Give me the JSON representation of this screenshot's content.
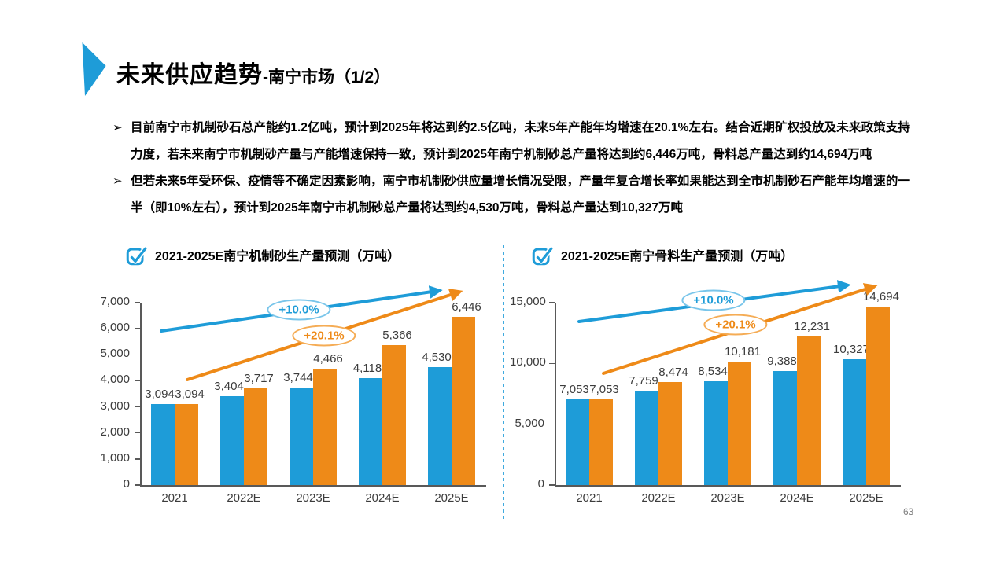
{
  "header": {
    "title_main": "未来供应趋势",
    "title_suffix": "-南宁市场（1/2）"
  },
  "bullet_marker": "➢",
  "bullets": [
    "目前南宁市机制砂石总产能约1.2亿吨，预计到2025年将达到约2.5亿吨，未来5年产能年均增速在20.1%左右。结合近期矿权投放及未来政策支持力度，若未来南宁市机制砂产量与产能增速保持一致，预计到2025年南宁机制砂总产量将达到约6,446万吨，骨料总产量达到约14,694万吨",
    "但若未来5年受环保、疫情等不确定因素影响，南宁市机制砂供应量增长情况受限，产量年复合增长率如果能达到全市机制砂石产能年均增速的一半（即10%左右），预计到2025年南宁市机制砂总产量将达到约4,530万吨，骨料总产量达到10,327万吨"
  ],
  "footer": {
    "page_number": "63"
  },
  "colors": {
    "blue": "#1E9CD8",
    "orange": "#EE8A18",
    "axis": "#595959",
    "divider": "#3FAADF"
  },
  "chart_data": [
    {
      "type": "bar",
      "title": "2021-2025E南宁机制砂生产量预测（万吨）",
      "categories": [
        "2021",
        "2022E",
        "2023E",
        "2024E",
        "2025E"
      ],
      "series": [
        {
          "name": "+10.0%",
          "color": "#1E9CD8",
          "values": [
            3094,
            3404,
            3744,
            4118,
            4530
          ]
        },
        {
          "name": "+20.1%",
          "color": "#EE8A18",
          "values": [
            3094,
            3717,
            4466,
            5366,
            6446
          ]
        }
      ],
      "annotations": [
        {
          "label": "+10.0%",
          "color": "#1E9CD8",
          "ring": "#79C5EA"
        },
        {
          "label": "+20.1%",
          "color": "#EE8A18",
          "ring": "#F5AC55"
        }
      ],
      "ylim": [
        0,
        7000
      ],
      "yticks": [
        0,
        1000,
        2000,
        3000,
        4000,
        5000,
        6000,
        7000
      ],
      "xlabel": "",
      "ylabel": "",
      "grid": false,
      "legend": "none"
    },
    {
      "type": "bar",
      "title": "2021-2025E南宁骨料生产量预测（万吨）",
      "categories": [
        "2021",
        "2022E",
        "2023E",
        "2024E",
        "2025E"
      ],
      "series": [
        {
          "name": "+10.0%",
          "color": "#1E9CD8",
          "values": [
            7053,
            7759,
            8534,
            9388,
            10327
          ]
        },
        {
          "name": "+20.1%",
          "color": "#EE8A18",
          "values": [
            7053,
            8474,
            10181,
            12231,
            14694
          ]
        }
      ],
      "annotations": [
        {
          "label": "+10.0%",
          "color": "#1E9CD8",
          "ring": "#79C5EA"
        },
        {
          "label": "+20.1%",
          "color": "#EE8A18",
          "ring": "#F5AC55"
        }
      ],
      "ylim": [
        0,
        15000
      ],
      "yticks": [
        0,
        5000,
        10000,
        15000
      ],
      "xlabel": "",
      "ylabel": "",
      "grid": false,
      "legend": "none"
    }
  ]
}
